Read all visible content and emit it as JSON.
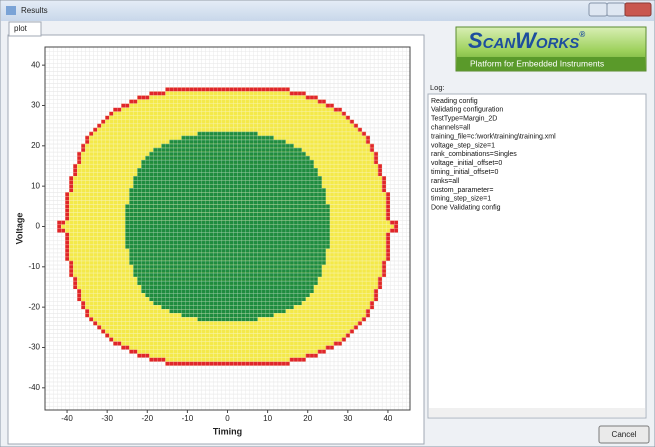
{
  "window": {
    "title": "Results"
  },
  "tab": "plot",
  "chart_data": {
    "type": "heatmap",
    "xlabel": "Timing",
    "ylabel": "Voltage",
    "xlim": [
      -45.5,
      45.5
    ],
    "ylim": [
      -45.5,
      44.5
    ],
    "xticks": [
      -40,
      -30,
      -20,
      -10,
      0,
      10,
      20,
      30,
      40
    ],
    "yticks": [
      -40,
      -30,
      -20,
      -10,
      0,
      10,
      20,
      30,
      40
    ],
    "margin_color": "#f4e94a",
    "edge_color": "#e0262a",
    "pass_color": "#1f8c3f",
    "grid_color": "#cfcfcf",
    "y": [
      34,
      33,
      32,
      31,
      30,
      29,
      28,
      27,
      26,
      25,
      24,
      23,
      22,
      21,
      20,
      19,
      18,
      17,
      16,
      15,
      14,
      13,
      12,
      11,
      10,
      9,
      8,
      7,
      6,
      5,
      4,
      3,
      2,
      1,
      0,
      -1,
      -2,
      -3,
      -4,
      -5,
      -6,
      -7,
      -8,
      -9,
      -10,
      -11,
      -12,
      -13,
      -14,
      -15,
      -16,
      -17,
      -18,
      -19,
      -20,
      -21,
      -22,
      -23,
      -24,
      -25,
      -26,
      -27,
      -28,
      -29,
      -30,
      -31,
      -32,
      -33,
      -34
    ],
    "margin_min": [
      -15,
      -19,
      -22,
      -24,
      -26,
      -28,
      -29,
      -30,
      -31,
      -32,
      -33,
      -34,
      -35,
      -35,
      -36,
      -36,
      -37,
      -37,
      -37,
      -38,
      -38,
      -38,
      -39,
      -39,
      -39,
      -39,
      -40,
      -40,
      -40,
      -40,
      -40,
      -40,
      -40,
      -42,
      -42,
      -42,
      -40,
      -40,
      -40,
      -40,
      -40,
      -40,
      -40,
      -39,
      -39,
      -39,
      -39,
      -38,
      -38,
      -38,
      -37,
      -37,
      -37,
      -36,
      -36,
      -35,
      -35,
      -34,
      -33,
      -32,
      -31,
      -30,
      -29,
      -28,
      -26,
      -24,
      -22,
      -19,
      -15
    ],
    "margin_max": [
      15,
      19,
      22,
      24,
      26,
      28,
      29,
      30,
      31,
      32,
      33,
      34,
      35,
      35,
      36,
      36,
      37,
      37,
      37,
      38,
      38,
      38,
      39,
      39,
      39,
      39,
      40,
      40,
      40,
      40,
      40,
      40,
      40,
      42,
      42,
      42,
      40,
      40,
      40,
      40,
      40,
      40,
      40,
      39,
      39,
      39,
      39,
      38,
      38,
      38,
      37,
      37,
      37,
      36,
      36,
      35,
      35,
      34,
      33,
      32,
      31,
      30,
      29,
      28,
      26,
      24,
      22,
      19,
      15
    ],
    "pass_min": [
      null,
      null,
      null,
      null,
      null,
      null,
      null,
      null,
      null,
      null,
      null,
      -7,
      -11,
      -14,
      -16,
      -18,
      -19,
      -20,
      -21,
      -21,
      -22,
      -22,
      -23,
      -23,
      -23,
      -24,
      -24,
      -24,
      -24,
      -25,
      -25,
      -25,
      -25,
      -25,
      -25,
      -25,
      -25,
      -25,
      -25,
      -25,
      -24,
      -24,
      -24,
      -24,
      -23,
      -23,
      -23,
      -22,
      -22,
      -21,
      -21,
      -20,
      -19,
      -18,
      -16,
      -14,
      -11,
      -7,
      null,
      null,
      null,
      null,
      null,
      null,
      null,
      null,
      null,
      null,
      null
    ],
    "pass_max": [
      null,
      null,
      null,
      null,
      null,
      null,
      null,
      null,
      null,
      null,
      null,
      7,
      11,
      14,
      16,
      18,
      19,
      20,
      21,
      21,
      22,
      22,
      23,
      23,
      23,
      24,
      24,
      24,
      24,
      25,
      25,
      25,
      25,
      25,
      25,
      25,
      25,
      25,
      25,
      25,
      24,
      24,
      24,
      24,
      23,
      23,
      23,
      22,
      22,
      21,
      21,
      20,
      19,
      18,
      16,
      14,
      11,
      7,
      null,
      null,
      null,
      null,
      null,
      null,
      null,
      null,
      null,
      null,
      null
    ]
  },
  "logo": {
    "title": "ScanWorks",
    "mark": "®",
    "subtitle": "Platform for Embedded Instruments"
  },
  "log": {
    "label": "Log:",
    "lines": [
      "Reading config",
      "Validating configuration",
      "TestType=Margin_2D",
      "channels=all",
      "training_file=c:\\work\\training\\training.xml",
      "voltage_step_size=1",
      "rank_combinations=Singles",
      "voltage_initial_offset=0",
      "timing_initial_offset=0",
      "ranks=all",
      "custom_parameter=",
      "timing_step_size=1",
      "Done Validating config"
    ]
  },
  "button": "Cancel"
}
